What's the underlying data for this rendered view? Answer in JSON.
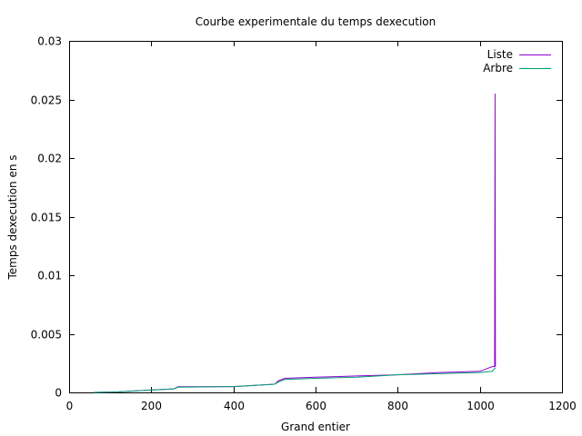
{
  "chart_data": {
    "type": "line",
    "title": "Courbe experimentale du temps dexecution",
    "xlabel": "Grand entier",
    "ylabel": "Temps dexecution en s",
    "xlim": [
      0,
      1200
    ],
    "ylim": [
      0,
      0.03
    ],
    "x_ticks": [
      0,
      200,
      400,
      600,
      800,
      1000,
      1200
    ],
    "x_tick_labels": [
      "0",
      "200",
      "400",
      "600",
      "800",
      "1000",
      "1200"
    ],
    "y_ticks": [
      0,
      0.005,
      0.01,
      0.015,
      0.02,
      0.025,
      0.03
    ],
    "y_tick_labels": [
      "0",
      "0.005",
      "0.01",
      "0.015",
      "0.02",
      "0.025",
      "0.03"
    ],
    "grid": false,
    "legend_position": "top-right",
    "series": [
      {
        "name": "Liste",
        "color": "#9400d3",
        "x": [
          60,
          120,
          200,
          255,
          265,
          400,
          500,
          510,
          525,
          600,
          700,
          800,
          900,
          1000,
          1030,
          1036,
          1037,
          1038
        ],
        "y": [
          0.0,
          5e-05,
          0.0002,
          0.0003,
          0.00048,
          0.0005,
          0.0007,
          0.001,
          0.0012,
          0.0013,
          0.0014,
          0.0015,
          0.0017,
          0.0018,
          0.0022,
          0.0022,
          0.0255,
          0.0022
        ]
      },
      {
        "name": "Arbre",
        "color": "#009e73",
        "x": [
          60,
          120,
          200,
          255,
          265,
          400,
          500,
          510,
          525,
          600,
          700,
          800,
          900,
          1000,
          1030,
          1038
        ],
        "y": [
          0.0,
          5e-05,
          0.0002,
          0.0003,
          0.00045,
          0.0005,
          0.0007,
          0.0009,
          0.0011,
          0.0012,
          0.0013,
          0.0015,
          0.0016,
          0.0017,
          0.0018,
          0.0021
        ]
      }
    ]
  }
}
